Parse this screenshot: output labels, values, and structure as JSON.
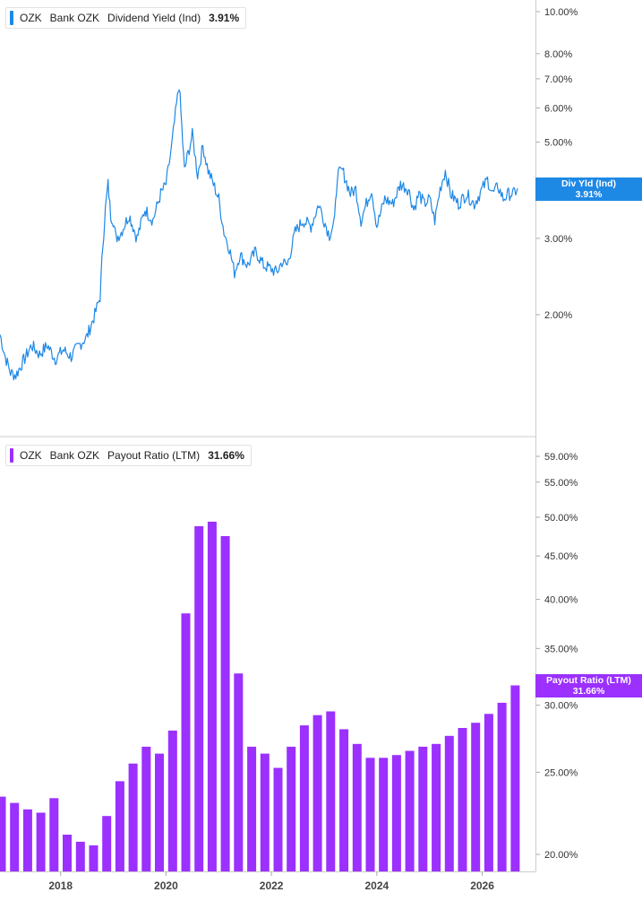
{
  "colors": {
    "yield": "#1e88e5",
    "payout": "#9b30ff"
  },
  "panels": {
    "yield": {
      "ticker": "OZK",
      "name": "Bank OZK",
      "metric": "Dividend Yield (Ind)",
      "value": "3.91%",
      "flag_label": "Div Yld (Ind)",
      "flag_value": "3.91%"
    },
    "payout": {
      "ticker": "OZK",
      "name": "Bank OZK",
      "metric": "Payout Ratio (LTM)",
      "value": "31.66%",
      "flag_label": "Payout Ratio (LTM)",
      "flag_value": "31.66%"
    }
  },
  "chart_data": [
    {
      "type": "line",
      "series_label": "Dividend Yield (Ind)",
      "scale": "log",
      "y_ticks": [
        2,
        3,
        4,
        5,
        6,
        7,
        8,
        10
      ],
      "y_tick_labels": [
        "2.00%",
        "3.00%",
        "",
        "5.00%",
        "6.00%",
        "7.00%",
        "8.00%",
        "10.00%"
      ],
      "x_ticks": [
        2018,
        2020,
        2022,
        2024,
        2026
      ],
      "x_tick_labels": [
        "2018",
        "2020",
        "2022",
        "2024",
        "2026"
      ],
      "x": [
        2016.85,
        2016.95,
        2017.05,
        2017.15,
        2017.3,
        2017.45,
        2017.6,
        2017.75,
        2017.9,
        2018.05,
        2018.2,
        2018.35,
        2018.5,
        2018.65,
        2018.75,
        2018.8,
        2018.85,
        2018.9,
        2018.95,
        2019.0,
        2019.05,
        2019.15,
        2019.3,
        2019.45,
        2019.6,
        2019.75,
        2019.9,
        2020.0,
        2020.1,
        2020.2,
        2020.25,
        2020.3,
        2020.35,
        2020.4,
        2020.5,
        2020.6,
        2020.7,
        2020.8,
        2020.9,
        2021.0,
        2021.1,
        2021.2,
        2021.3,
        2021.4,
        2021.55,
        2021.7,
        2021.85,
        2022.0,
        2022.1,
        2022.2,
        2022.3,
        2022.45,
        2022.6,
        2022.75,
        2022.9,
        2023.0,
        2023.1,
        2023.2,
        2023.25,
        2023.35,
        2023.5,
        2023.6,
        2023.7,
        2023.8,
        2023.9,
        2024.0,
        2024.15,
        2024.3,
        2024.45,
        2024.6,
        2024.7,
        2024.8,
        2024.9,
        2025.0,
        2025.1,
        2025.2,
        2025.3,
        2025.4,
        2025.55,
        2025.7,
        2025.85,
        2026.0,
        2026.1,
        2026.2,
        2026.3,
        2026.4,
        2026.5,
        2026.6,
        2026.67
      ],
      "values": [
        1.8,
        1.6,
        1.47,
        1.45,
        1.57,
        1.7,
        1.62,
        1.7,
        1.58,
        1.66,
        1.6,
        1.7,
        1.78,
        2.0,
        2.2,
        2.9,
        3.5,
        4.0,
        3.4,
        3.3,
        3.0,
        3.1,
        3.4,
        3.0,
        3.5,
        3.3,
        3.8,
        4.0,
        4.8,
        6.1,
        6.8,
        5.4,
        4.3,
        4.6,
        5.2,
        4.2,
        4.9,
        4.3,
        4.0,
        3.7,
        3.1,
        2.85,
        2.5,
        2.75,
        2.6,
        2.8,
        2.6,
        2.55,
        2.5,
        2.65,
        2.6,
        3.1,
        3.3,
        3.2,
        3.6,
        3.3,
        3.05,
        3.3,
        4.2,
        4.3,
        3.8,
        3.9,
        3.3,
        3.6,
        3.9,
        3.2,
        3.7,
        3.6,
        4.0,
        3.9,
        3.5,
        3.8,
        3.6,
        3.7,
        3.3,
        3.9,
        4.3,
        3.8,
        3.6,
        3.8,
        3.6,
        3.9,
        4.1,
        3.8,
        3.95,
        3.7,
        3.8,
        3.8,
        3.91
      ]
    },
    {
      "type": "bar",
      "series_label": "Payout Ratio (LTM)",
      "scale": "log",
      "y_ticks": [
        20,
        25,
        30,
        35,
        40,
        45,
        50,
        55,
        59
      ],
      "y_tick_labels": [
        "20.00%",
        "25.00%",
        "30.00%",
        "35.00%",
        "40.00%",
        "45.00%",
        "50.00%",
        "55.00%",
        "59.00%"
      ],
      "x_ticks": [
        2018,
        2020,
        2022,
        2024,
        2026
      ],
      "x_tick_labels": [
        "2018",
        "2020",
        "2022",
        "2024",
        "2026"
      ],
      "x": [
        2016.875,
        2017.125,
        2017.375,
        2017.625,
        2017.875,
        2018.125,
        2018.375,
        2018.625,
        2018.875,
        2019.125,
        2019.375,
        2019.625,
        2019.875,
        2020.125,
        2020.375,
        2020.625,
        2020.875,
        2021.125,
        2021.375,
        2021.625,
        2021.875,
        2022.125,
        2022.375,
        2022.625,
        2022.875,
        2023.125,
        2023.375,
        2023.625,
        2023.875,
        2024.125,
        2024.375,
        2024.625,
        2024.875,
        2025.125,
        2025.375,
        2025.625,
        2025.875,
        2026.125,
        2026.375,
        2026.625
      ],
      "values": [
        23.4,
        23.0,
        22.6,
        22.4,
        23.3,
        21.1,
        20.7,
        20.5,
        22.2,
        24.4,
        25.6,
        26.8,
        26.3,
        28.0,
        38.5,
        48.8,
        49.4,
        47.5,
        32.7,
        26.8,
        26.3,
        25.3,
        26.8,
        28.4,
        29.2,
        29.5,
        28.1,
        27.0,
        26.0,
        26.0,
        26.2,
        26.5,
        26.8,
        27.0,
        27.6,
        28.2,
        28.6,
        29.3,
        30.2,
        31.66
      ]
    }
  ]
}
